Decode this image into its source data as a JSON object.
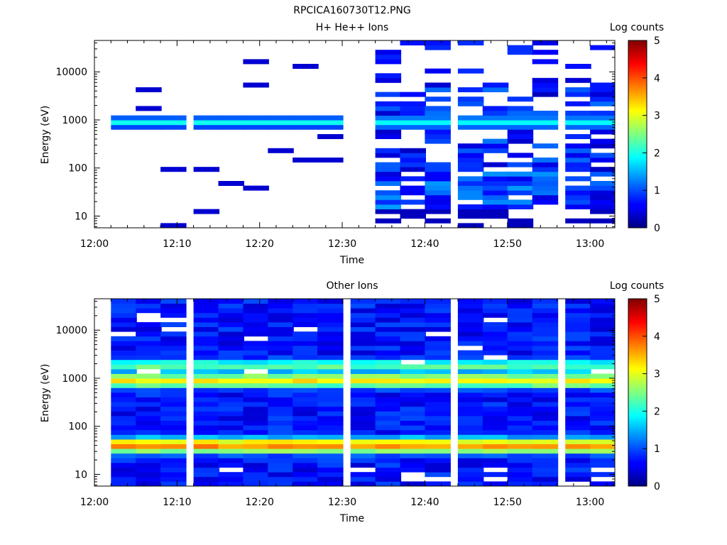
{
  "figure_title": "RPCICA160730T12.PNG",
  "chart_data": [
    {
      "type": "heatmap",
      "title": "H+ He++ Ions",
      "xlabel": "Time",
      "ylabel": "Energy (eV)",
      "colorbar_label": "Log counts",
      "x_ticks": [
        "12:00",
        "12:10",
        "12:20",
        "12:30",
        "12:40",
        "12:50",
        "13:00"
      ],
      "y_ticks": [
        "10",
        "100",
        "1000",
        "10000"
      ],
      "y_scale": "log",
      "xlim": [
        "12:00",
        "13:03"
      ],
      "ylim": [
        5.7,
        45000
      ],
      "colorbar_range": [
        0,
        5
      ],
      "colorbar_ticks": [
        "0",
        "1",
        "2",
        "3",
        "4",
        "5"
      ],
      "time_bins": [
        "12:02",
        "12:05",
        "12:08",
        "12:12",
        "12:15",
        "12:18",
        "12:21",
        "12:24",
        "12:27",
        "12:31",
        "12:34",
        "12:37",
        "12:40",
        "12:44",
        "12:47",
        "12:50",
        "12:53",
        "12:57",
        "13:00"
      ],
      "segments": [
        {
          "start": "12:02",
          "end": "12:31",
          "profile": "core",
          "peak_energy": 900,
          "peak_log_counts": 2.0
        },
        {
          "start": "12:34",
          "end": "13:03",
          "profile": "broad",
          "peak_energy": 900,
          "peak_log_counts": 1.9
        }
      ]
    },
    {
      "type": "heatmap",
      "title": "Other Ions",
      "xlabel": "Time",
      "ylabel": "Energy (eV)",
      "colorbar_label": "Log counts",
      "x_ticks": [
        "12:00",
        "12:10",
        "12:20",
        "12:30",
        "12:40",
        "12:50",
        "13:00"
      ],
      "y_ticks": [
        "10",
        "100",
        "1000",
        "10000"
      ],
      "y_scale": "log",
      "xlim": [
        "12:00",
        "13:03"
      ],
      "ylim": [
        5.7,
        45000
      ],
      "colorbar_range": [
        0,
        5
      ],
      "colorbar_ticks": [
        "0",
        "1",
        "2",
        "3",
        "4",
        "5"
      ],
      "time_bins": [
        "12:02",
        "12:05",
        "12:08",
        "12:12",
        "12:15",
        "12:18",
        "12:21",
        "12:24",
        "12:27",
        "12:31",
        "12:34",
        "12:37",
        "12:40",
        "12:44",
        "12:47",
        "12:50",
        "12:53",
        "12:57",
        "13:00"
      ],
      "bands": [
        {
          "energy": 40,
          "log_counts": 3.7
        },
        {
          "energy": 900,
          "log_counts": 3.2
        },
        {
          "energy": 1800,
          "log_counts": 2.3
        }
      ],
      "background_log_counts": 0.7
    }
  ]
}
